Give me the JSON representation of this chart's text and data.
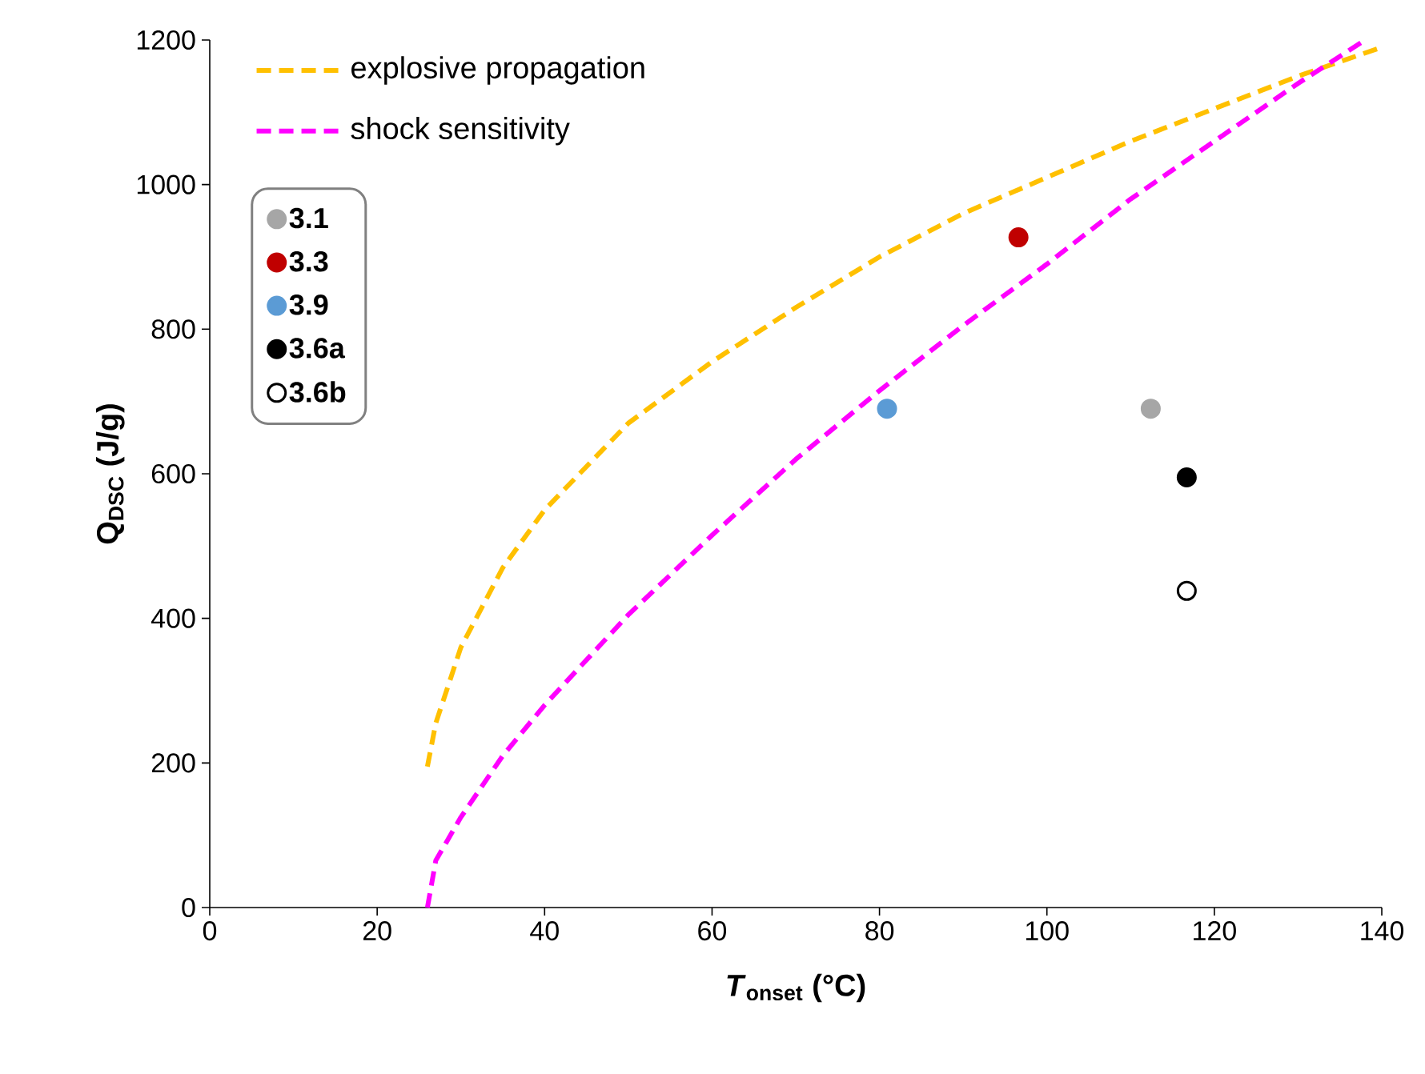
{
  "chart_data": {
    "type": "scatter",
    "xlabel": "*T*$_{onset}$ (°C)",
    "ylabel": "Q$_{DSC}$ (J/g)",
    "xlim": [
      0,
      140
    ],
    "ylim": [
      0,
      1200
    ],
    "xticks": [
      0,
      20,
      40,
      60,
      80,
      100,
      120,
      140
    ],
    "yticks": [
      0,
      200,
      400,
      600,
      800,
      1000,
      1200
    ],
    "grid": false,
    "legend": "top left",
    "series": [
      {
        "name": "explosive propagation",
        "type": "line",
        "line_style": "dashed",
        "marker": "none",
        "color": "#ffc000",
        "x": [
          26,
          27,
          30,
          35,
          40,
          50,
          60,
          70,
          80,
          90,
          100,
          110,
          120,
          130,
          140
        ],
        "values": [
          195,
          255,
          360,
          470,
          550,
          670,
          755,
          830,
          900,
          960,
          1010,
          1060,
          1105,
          1150,
          1190
        ]
      },
      {
        "name": "shock sensitivity",
        "type": "line",
        "line_style": "dashed",
        "marker": "none",
        "color": "#ff00ff",
        "x": [
          26,
          27,
          30,
          35,
          40,
          50,
          60,
          70,
          80,
          90,
          100,
          110,
          120,
          130,
          138
        ],
        "values": [
          0,
          65,
          125,
          210,
          280,
          405,
          515,
          620,
          715,
          805,
          890,
          980,
          1060,
          1140,
          1200
        ]
      },
      {
        "name": "**3.1**",
        "marker": "circle",
        "color": "#a6a6a6",
        "x": [
          112.4
        ],
        "values": [
          690
        ]
      },
      {
        "name": "**3.3**",
        "marker": "circle",
        "color": "#c00000",
        "x": [
          96.6
        ],
        "values": [
          927
        ]
      },
      {
        "name": "**3.9**",
        "marker": "circle",
        "color": "#5b9bd5",
        "x": [
          80.9
        ],
        "values": [
          690
        ]
      },
      {
        "name": "**3.6a**",
        "marker": "circle",
        "color": "#000000",
        "x": [
          116.7
        ],
        "values": [
          595
        ]
      },
      {
        "name": "**3.6b**",
        "marker": "circle",
        "color": "#ffffff",
        "x": [
          116.7
        ],
        "values": [
          438
        ]
      }
    ]
  }
}
